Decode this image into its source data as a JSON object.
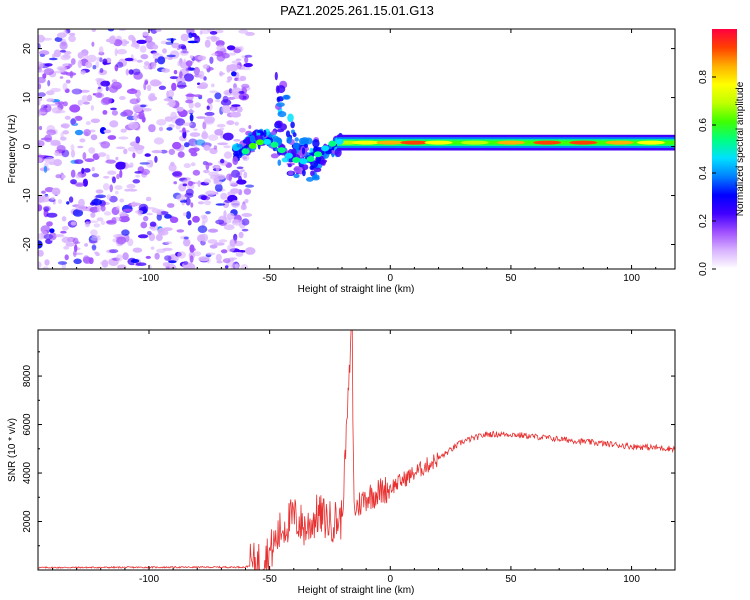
{
  "title": "PAZ1.2025.261.15.01.G13",
  "chart_data": [
    {
      "type": "heatmap",
      "xlabel": "Height of straight line (km)",
      "ylabel": "Frequency (Hz)",
      "xlim": [
        -146,
        118
      ],
      "ylim": [
        -25,
        24
      ],
      "xticks": [
        -100,
        -50,
        0,
        50,
        100
      ],
      "yticks": [
        -20,
        -10,
        0,
        10,
        20
      ],
      "colorbar": {
        "label": "Normalized spectral amplitude",
        "range": [
          0,
          1
        ],
        "ticks": [
          "0.0",
          "0.2",
          "0.4",
          "0.6",
          "0.8"
        ],
        "colormap": [
          "#ffffff",
          "#d9b3ff",
          "#a050ff",
          "#4000ff",
          "#0000ff",
          "#0080ff",
          "#00e0ff",
          "#00ff80",
          "#40ff00",
          "#c0ff00",
          "#ffff00",
          "#ffb000",
          "#ff4000",
          "#ff0040"
        ]
      },
      "regions": [
        {
          "description": "noise",
          "x_range": [
            -146,
            -58
          ],
          "freq_range": [
            -25,
            24
          ],
          "amplitude": 0.15
        },
        {
          "description": "signal wobble",
          "x_range": [
            -65,
            -20
          ],
          "freq_center": 0,
          "amplitude": 0.3
        },
        {
          "description": "stable tone",
          "x_range": [
            -20,
            118
          ],
          "freq_center": 0.8,
          "amplitude": 0.9
        }
      ]
    },
    {
      "type": "line",
      "xlabel": "Height of straight line (km)",
      "ylabel": "SNR (10 * v/v)",
      "xlim": [
        -146,
        118
      ],
      "ylim": [
        0,
        9900
      ],
      "xticks": [
        -100,
        -50,
        0,
        50,
        100
      ],
      "yticks": [
        2000,
        4000,
        6000,
        8000
      ],
      "color": "#e83030",
      "series_profile": [
        {
          "x": -146,
          "y": 100
        },
        {
          "x": -60,
          "y": 120
        },
        {
          "x": -55,
          "y": 300
        },
        {
          "x": -50,
          "y": 700
        },
        {
          "x": -45,
          "y": 1700
        },
        {
          "x": -40,
          "y": 2200
        },
        {
          "x": -35,
          "y": 1700
        },
        {
          "x": -30,
          "y": 2300
        },
        {
          "x": -25,
          "y": 2000
        },
        {
          "x": -20,
          "y": 2100
        },
        {
          "x": -16,
          "y": 9900
        },
        {
          "x": -15,
          "y": 2500
        },
        {
          "x": -10,
          "y": 3000
        },
        {
          "x": -5,
          "y": 3200
        },
        {
          "x": 0,
          "y": 3400
        },
        {
          "x": 10,
          "y": 4000
        },
        {
          "x": 20,
          "y": 4600
        },
        {
          "x": 30,
          "y": 5300
        },
        {
          "x": 40,
          "y": 5600
        },
        {
          "x": 50,
          "y": 5600
        },
        {
          "x": 60,
          "y": 5500
        },
        {
          "x": 80,
          "y": 5300
        },
        {
          "x": 100,
          "y": 5100
        },
        {
          "x": 118,
          "y": 5000
        }
      ]
    }
  ]
}
